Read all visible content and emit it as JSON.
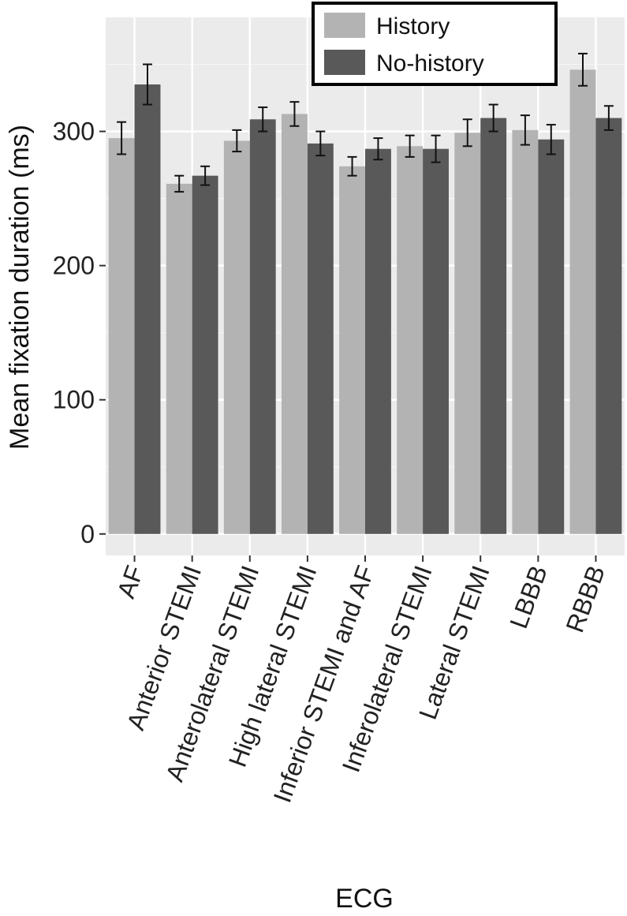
{
  "chart_data": {
    "type": "bar",
    "xlabel": "ECG",
    "ylabel": "Mean fixation duration (ms)",
    "categories": [
      "AF",
      "Anterior STEMI",
      "Anterolateral STEMI",
      "High lateral STEMI",
      "Inferior STEMI and AF",
      "Inferolateral STEMI",
      "Lateral STEMI",
      "LBBB",
      "RBBB"
    ],
    "series": [
      {
        "name": "History",
        "color": "#b3b3b3",
        "values": [
          295,
          261,
          293,
          313,
          274,
          289,
          299,
          301,
          346
        ],
        "error": [
          12,
          6,
          8,
          9,
          7,
          8,
          10,
          11,
          12
        ]
      },
      {
        "name": "No-history",
        "color": "#595959",
        "values": [
          335,
          267,
          309,
          291,
          287,
          287,
          310,
          294,
          310
        ],
        "error": [
          15,
          7,
          9,
          9,
          8,
          10,
          10,
          11,
          9
        ]
      }
    ],
    "ylim": [
      -16,
      385
    ],
    "yticks": [
      0,
      100,
      200,
      300
    ],
    "grid": true,
    "legend_position": "top-right"
  }
}
